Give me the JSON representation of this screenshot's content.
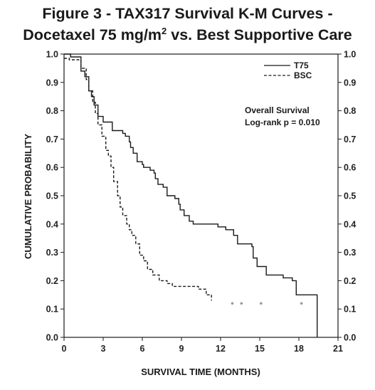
{
  "chart_data": {
    "type": "line",
    "step": true,
    "title_line1": "Figure 3 - TAX317 Survival K-M Curves -",
    "title_line2_prefix": "Docetaxel 75 mg/m",
    "title_line2_sup": "2",
    "title_line2_suffix": " vs. Best Supportive Care",
    "xlabel": "SURVIVAL TIME (MONTHS)",
    "ylabel": "CUMULATIVE PROBABILITY",
    "xlim": [
      0,
      21
    ],
    "ylim": [
      0,
      1.0
    ],
    "x_ticks": [
      0,
      3,
      6,
      9,
      12,
      15,
      18,
      21
    ],
    "y_ticks": [
      "0.0",
      "0.1",
      "0.2",
      "0.3",
      "0.4",
      "0.5",
      "0.6",
      "0.7",
      "0.8",
      "0.9",
      "1.0"
    ],
    "legend_position": "top-right",
    "annotation": [
      "Overall Survival",
      "Log-rank p = 0.010"
    ],
    "series": [
      {
        "name": "T75",
        "line_style": "solid",
        "color": "#1a1a1a",
        "points": [
          [
            0,
            1.0
          ],
          [
            0.5,
            0.99
          ],
          [
            1.3,
            0.94
          ],
          [
            1.6,
            0.92
          ],
          [
            1.9,
            0.87
          ],
          [
            2.1,
            0.85
          ],
          [
            2.3,
            0.82
          ],
          [
            2.6,
            0.78
          ],
          [
            3.0,
            0.76
          ],
          [
            3.7,
            0.73
          ],
          [
            4.5,
            0.72
          ],
          [
            4.7,
            0.71
          ],
          [
            5.0,
            0.69
          ],
          [
            5.1,
            0.67
          ],
          [
            5.3,
            0.65
          ],
          [
            5.6,
            0.62
          ],
          [
            6.0,
            0.61
          ],
          [
            6.1,
            0.6
          ],
          [
            6.6,
            0.59
          ],
          [
            6.9,
            0.58
          ],
          [
            7.0,
            0.56
          ],
          [
            7.2,
            0.54
          ],
          [
            7.6,
            0.53
          ],
          [
            7.9,
            0.5
          ],
          [
            8.5,
            0.49
          ],
          [
            8.8,
            0.47
          ],
          [
            8.9,
            0.45
          ],
          [
            9.2,
            0.43
          ],
          [
            9.6,
            0.41
          ],
          [
            9.9,
            0.4
          ],
          [
            11.8,
            0.39
          ],
          [
            12.4,
            0.38
          ],
          [
            13.0,
            0.36
          ],
          [
            13.3,
            0.33
          ],
          [
            14.1,
            0.33
          ],
          [
            14.4,
            0.32
          ],
          [
            14.5,
            0.28
          ],
          [
            14.8,
            0.25
          ],
          [
            15.5,
            0.22
          ],
          [
            16.8,
            0.21
          ],
          [
            17.5,
            0.2
          ],
          [
            17.8,
            0.15
          ],
          [
            19.4,
            0.0
          ]
        ],
        "end_x": 19.4
      },
      {
        "name": "BSC",
        "line_style": "dashed",
        "color": "#1a1a1a",
        "points": [
          [
            0,
            0.985
          ],
          [
            0.4,
            0.98
          ],
          [
            1.3,
            0.95
          ],
          [
            1.7,
            0.91
          ],
          [
            1.9,
            0.87
          ],
          [
            2.2,
            0.83
          ],
          [
            2.4,
            0.79
          ],
          [
            2.6,
            0.75
          ],
          [
            2.9,
            0.71
          ],
          [
            3.2,
            0.66
          ],
          [
            3.4,
            0.64
          ],
          [
            3.6,
            0.6
          ],
          [
            3.8,
            0.55
          ],
          [
            4.1,
            0.5
          ],
          [
            4.3,
            0.46
          ],
          [
            4.5,
            0.43
          ],
          [
            4.8,
            0.4
          ],
          [
            5.0,
            0.38
          ],
          [
            5.2,
            0.36
          ],
          [
            5.5,
            0.33
          ],
          [
            5.8,
            0.29
          ],
          [
            6.1,
            0.27
          ],
          [
            6.4,
            0.24
          ],
          [
            6.8,
            0.22
          ],
          [
            7.3,
            0.2
          ],
          [
            7.9,
            0.19
          ],
          [
            8.3,
            0.18
          ],
          [
            10.3,
            0.17
          ],
          [
            10.9,
            0.15
          ],
          [
            11.3,
            0.13
          ]
        ],
        "end_x": 11.3
      }
    ],
    "censor_marks": [
      {
        "x": 12.9,
        "y": 0.12
      },
      {
        "x": 13.6,
        "y": 0.12
      },
      {
        "x": 15.1,
        "y": 0.12
      },
      {
        "x": 18.2,
        "y": 0.12
      }
    ]
  }
}
